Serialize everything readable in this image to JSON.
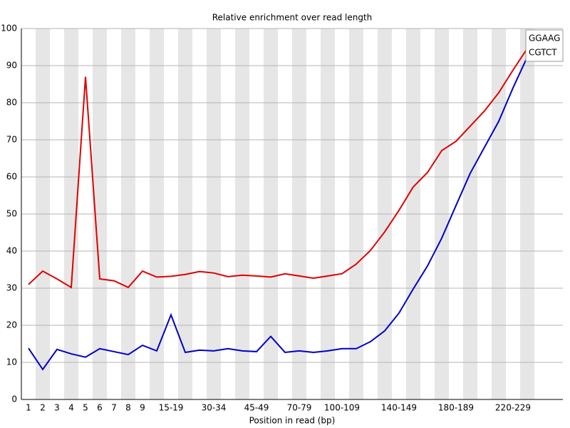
{
  "chart_data": {
    "type": "line",
    "title": "Relative enrichment over read length",
    "x_label": "Position in read (bp)",
    "categories": [
      "1",
      "2",
      "3",
      "4",
      "5",
      "6",
      "7",
      "8",
      "9",
      null,
      "15-19",
      null,
      null,
      "30-34",
      null,
      null,
      "45-49",
      null,
      null,
      "70-79",
      null,
      null,
      "100-109",
      null,
      null,
      null,
      "140-149",
      null,
      null,
      null,
      "180-189",
      null,
      null,
      null,
      "220-229",
      null
    ],
    "series": [
      {
        "name": "GGAAG",
        "color": "#e00000",
        "values": [
          31,
          34.6,
          32.5,
          30.2,
          87,
          32.5,
          32,
          30.2,
          34.6,
          33,
          33.2,
          33.7,
          34.5,
          34.1,
          33.1,
          33.5,
          33.3,
          33,
          33.9,
          33.3,
          32.7,
          33.3,
          33.9,
          36.5,
          40.2,
          45.2,
          51,
          57.3,
          61.2,
          67.1,
          69.6,
          73.7,
          77.8,
          82.7,
          88.8,
          94.6
        ]
      },
      {
        "name": "CGTCT",
        "color": "#0000c8",
        "values": [
          13.8,
          8.1,
          13.5,
          12.3,
          11.4,
          13.7,
          12.9,
          12.1,
          14.6,
          13.1,
          22.8,
          12.7,
          13.3,
          13.1,
          13.7,
          13.1,
          12.9,
          17,
          12.7,
          13.1,
          12.7,
          13.1,
          13.7,
          13.7,
          15.6,
          18.5,
          23.3,
          29.8,
          36,
          43.5,
          52.3,
          61,
          68,
          75,
          84,
          92.3
        ]
      }
    ],
    "ylim": [
      0,
      100
    ],
    "yticks": [
      0,
      10,
      20,
      30,
      40,
      50,
      60,
      70,
      80,
      90,
      100
    ],
    "grid": true,
    "legend": "upper right"
  }
}
